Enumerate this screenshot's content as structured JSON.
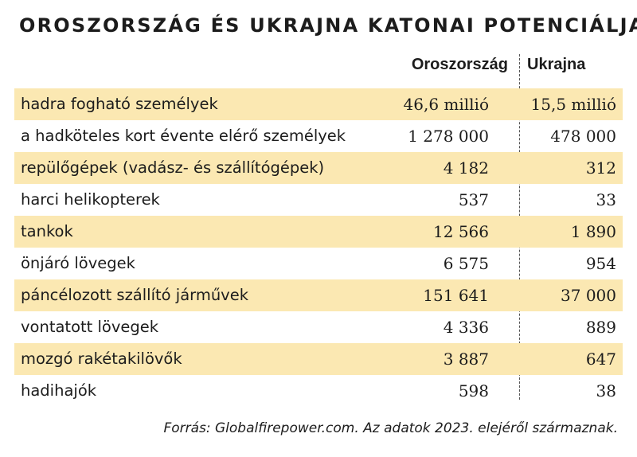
{
  "title": "OROSZORSZÁG ÉS UKRAJNA KATONAI POTENCIÁLJA",
  "columns": [
    "Oroszország",
    "Ukrajna"
  ],
  "source": "Forrás: Globalfirepower.com. Az adatok 2023. elejéről származnak.",
  "colors": {
    "shaded_row": "#fbe8b2",
    "text": "#1c1c1c"
  },
  "chart_data": {
    "type": "table",
    "title": "OROSZORSZÁG ÉS UKRAJNA KATONAI POTENCIÁLJA",
    "columns": [
      "",
      "Oroszország",
      "Ukrajna"
    ],
    "rows": [
      {
        "label": "hadra fogható személyek",
        "ru": "46,6 millió",
        "ua": "15,5 millió"
      },
      {
        "label": "a hadköteles kort évente elérő személyek",
        "ru": "1 278 000",
        "ua": "478 000"
      },
      {
        "label": "repülőgépek (vadász- és szállítógépek)",
        "ru": "4 182",
        "ua": "312"
      },
      {
        "label": "harci helikopterek",
        "ru": "537",
        "ua": "33"
      },
      {
        "label": "tankok",
        "ru": "12 566",
        "ua": "1 890"
      },
      {
        "label": "önjáró lövegek",
        "ru": "6 575",
        "ua": "954"
      },
      {
        "label": "páncélozott szállító járművek",
        "ru": "151 641",
        "ua": "37 000"
      },
      {
        "label": "vontatott lövegek",
        "ru": "4 336",
        "ua": "889"
      },
      {
        "label": "mozgó rakétakilövők",
        "ru": "3 887",
        "ua": "647"
      },
      {
        "label": "hadihajók",
        "ru": "598",
        "ua": "38"
      }
    ]
  }
}
